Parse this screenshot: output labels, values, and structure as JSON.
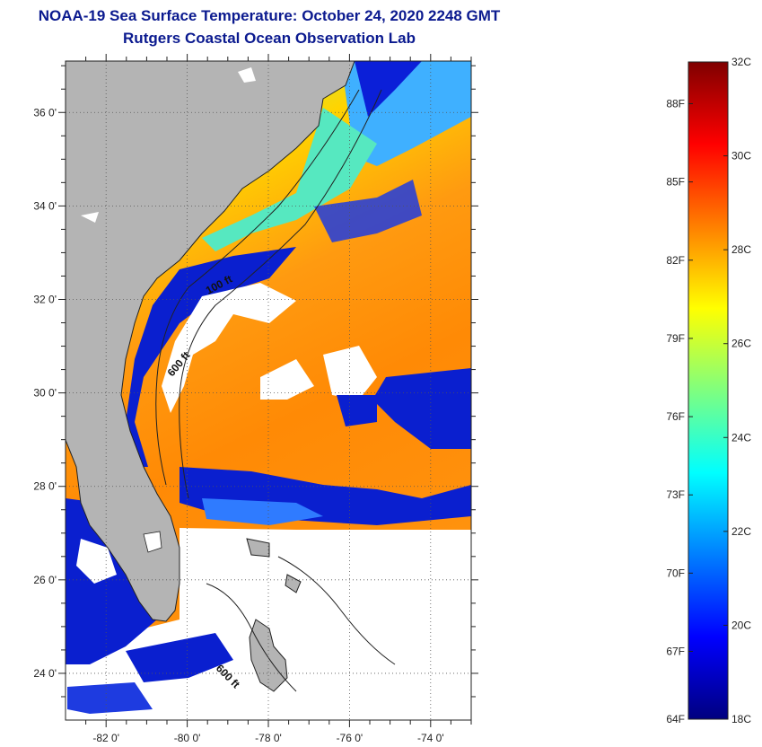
{
  "header": {
    "title": "NOAA-19 Sea Surface Temperature:  October 24, 2020 2248 GMT",
    "subtitle": "Rutgers Coastal Ocean Observation Lab"
  },
  "map": {
    "lon_range": [
      -83,
      -73
    ],
    "lat_range": [
      23,
      37.1
    ],
    "lat_ticks": [
      {
        "value": 36,
        "label": "36 0'"
      },
      {
        "value": 34,
        "label": "34 0'"
      },
      {
        "value": 32,
        "label": "32 0'"
      },
      {
        "value": 30,
        "label": "30 0'"
      },
      {
        "value": 28,
        "label": "28 0'"
      },
      {
        "value": 26,
        "label": "26 0'"
      },
      {
        "value": 24,
        "label": "24 0'"
      }
    ],
    "lon_ticks": [
      {
        "value": -82,
        "label": "-82 0'"
      },
      {
        "value": -80,
        "label": "-80 0'"
      },
      {
        "value": -78,
        "label": "-78 0'"
      },
      {
        "value": -76,
        "label": "-76 0'"
      },
      {
        "value": -74,
        "label": "-74 0'"
      }
    ],
    "isobath_labels": [
      "100 ft",
      "600 ft",
      "600 ft"
    ],
    "colors": {
      "land": "#b4b4b4",
      "cloud": "#ffffff",
      "grid": "#555555"
    }
  },
  "colorbar": {
    "min_c": 18,
    "max_c": 32,
    "celsius_labels": [
      {
        "value": 32,
        "label": "32C"
      },
      {
        "value": 30,
        "label": "30C"
      },
      {
        "value": 28,
        "label": "28C"
      },
      {
        "value": 26,
        "label": "26C"
      },
      {
        "value": 24,
        "label": "24C"
      },
      {
        "value": 22,
        "label": "22C"
      },
      {
        "value": 20,
        "label": "20C"
      },
      {
        "value": 18,
        "label": "18C"
      }
    ],
    "fahrenheit_labels": [
      {
        "value": 88,
        "label": "88F"
      },
      {
        "value": 85,
        "label": "85F"
      },
      {
        "value": 82,
        "label": "82F"
      },
      {
        "value": 79,
        "label": "79F"
      },
      {
        "value": 76,
        "label": "76F"
      },
      {
        "value": 73,
        "label": "73F"
      },
      {
        "value": 70,
        "label": "70F"
      },
      {
        "value": 67,
        "label": "67F"
      },
      {
        "value": 64,
        "label": "64F"
      }
    ],
    "jet_stops": [
      "#00007f",
      "#0000ff",
      "#007fff",
      "#00ffff",
      "#7fff7f",
      "#ffff00",
      "#ff7f00",
      "#ff0000",
      "#7f0000"
    ]
  }
}
